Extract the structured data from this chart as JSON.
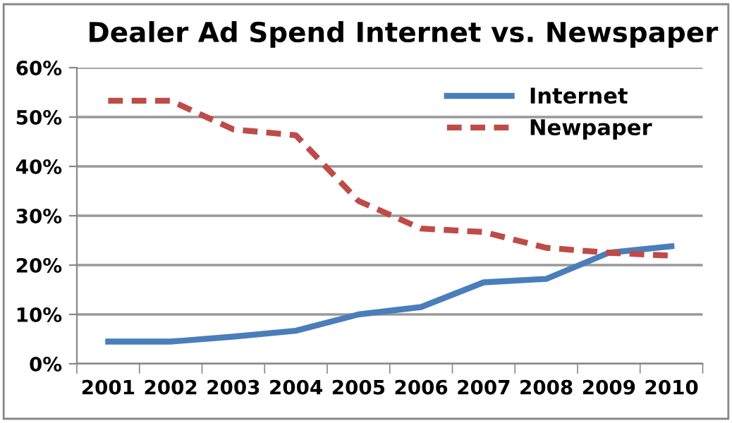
{
  "chart_data": {
    "type": "line",
    "title": "Dealer Ad Spend Internet vs. Newspaper",
    "categories": [
      "2001",
      "2002",
      "2003",
      "2004",
      "2005",
      "2006",
      "2007",
      "2008",
      "2009",
      "2010"
    ],
    "series": [
      {
        "name": "Internet",
        "color": "#4a7ebb",
        "line_style": "solid",
        "values": [
          4.5,
          4.5,
          5.5,
          6.7,
          10,
          11.5,
          16.5,
          17.2,
          22.5,
          23.8
        ]
      },
      {
        "name": "Newpaper",
        "color": "#be4b48",
        "line_style": "dashed",
        "values": [
          53.3,
          53.3,
          47.5,
          46.3,
          33,
          27.4,
          26.7,
          23.5,
          22.5,
          21.9
        ]
      }
    ],
    "ylim": [
      0,
      60
    ],
    "yticks": [
      {
        "value": 0,
        "label": "0%"
      },
      {
        "value": 10,
        "label": "10%"
      },
      {
        "value": 20,
        "label": "20%"
      },
      {
        "value": 30,
        "label": "30%"
      },
      {
        "value": 40,
        "label": "40%"
      },
      {
        "value": 50,
        "label": "50%"
      },
      {
        "value": 60,
        "label": "60%"
      }
    ],
    "grid": "y",
    "legend": "top right"
  }
}
